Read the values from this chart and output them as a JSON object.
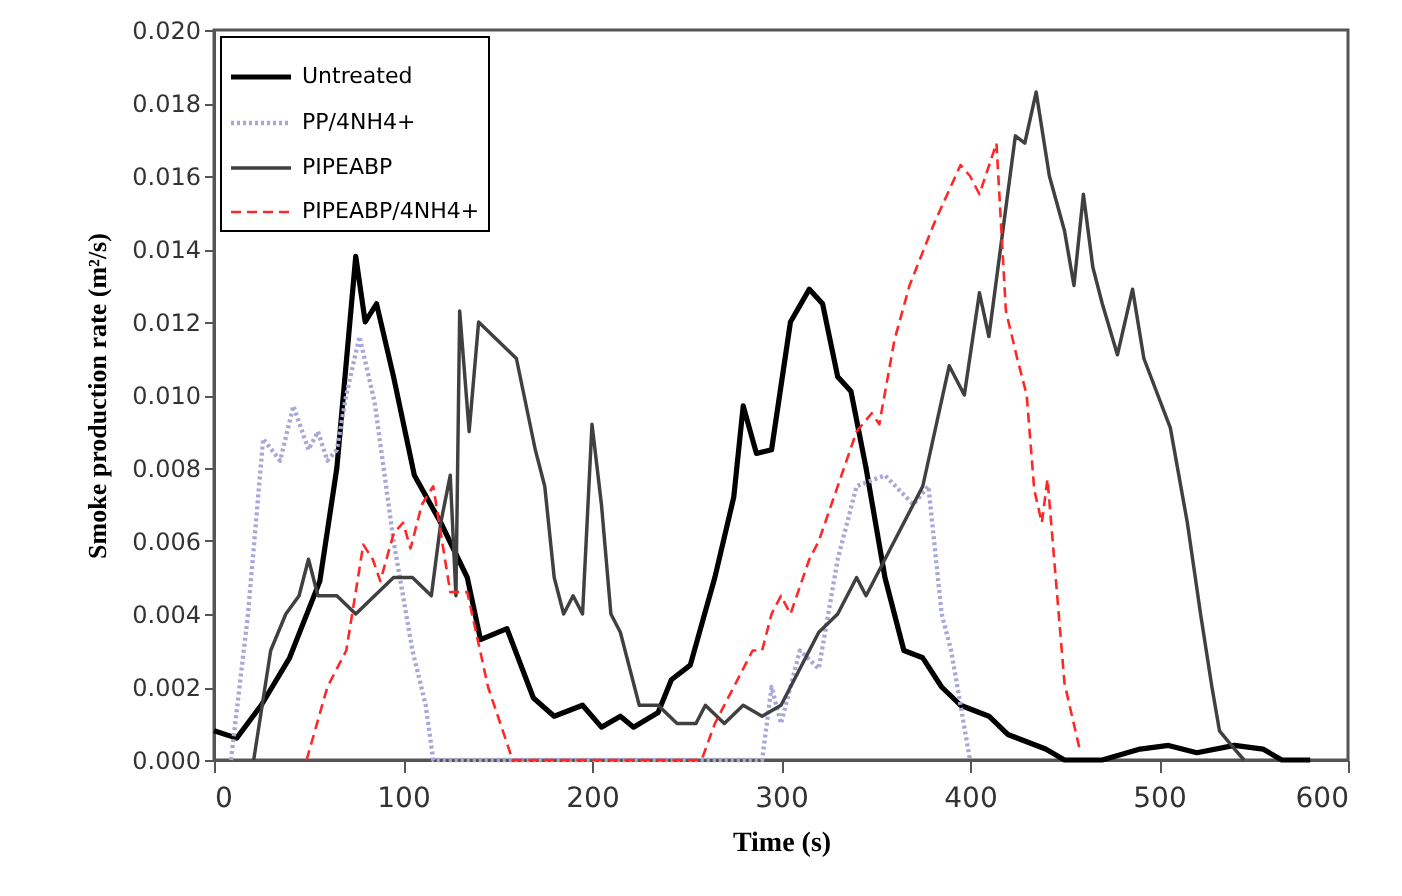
{
  "chart_data": {
    "type": "line",
    "xlabel": "Time (s)",
    "ylabel": "Smoke production  rate (m²/s)",
    "xlim": [
      0,
      600
    ],
    "xticks": [
      0,
      100,
      200,
      300,
      400,
      500,
      600
    ],
    "ylim": [
      0,
      0.02
    ],
    "yticks": [
      {
        "value": 0,
        "label": "0.000"
      },
      {
        "value": 0.002,
        "label": "0.002"
      },
      {
        "value": 0.004,
        "label": "0.004"
      },
      {
        "value": 0.006,
        "label": "0.006"
      },
      {
        "value": 0.008,
        "label": "0.008"
      },
      {
        "value": 0.01,
        "label": "0.010"
      },
      {
        "value": 0.012,
        "label": "0.012"
      },
      {
        "value": 0.014,
        "label": "0.014"
      },
      {
        "value": 0.016,
        "label": "0.016"
      },
      {
        "value": 0.018,
        "label": "0.018"
      },
      {
        "value": 0.02,
        "label": "0.020"
      }
    ],
    "grid": false,
    "legend": "top left",
    "marker": "none",
    "series": [
      {
        "name": "Untreated",
        "color": "#000000",
        "line_style": "solid",
        "x": [
          0,
          12,
          25,
          40,
          56,
          65,
          75,
          80,
          86,
          95,
          106,
          120,
          134,
          141,
          155,
          169,
          180,
          195,
          205,
          215,
          222,
          235,
          242,
          252,
          265,
          275,
          280,
          287,
          295,
          305,
          315,
          322,
          330,
          337,
          345,
          355,
          365,
          375,
          385,
          395,
          410,
          420,
          440,
          450,
          470,
          490,
          505,
          520,
          540,
          555,
          565,
          580
        ],
        "values": [
          0.0008,
          0.0006,
          0.0015,
          0.0028,
          0.0049,
          0.008,
          0.0138,
          0.012,
          0.0125,
          0.0105,
          0.0078,
          0.0065,
          0.005,
          0.0033,
          0.0036,
          0.0017,
          0.0012,
          0.0015,
          0.0009,
          0.0012,
          0.0009,
          0.0013,
          0.0022,
          0.0026,
          0.005,
          0.0072,
          0.0097,
          0.0084,
          0.0085,
          0.012,
          0.0129,
          0.0125,
          0.0105,
          0.0101,
          0.008,
          0.005,
          0.003,
          0.0028,
          0.002,
          0.0015,
          0.0012,
          0.0007,
          0.0003,
          0,
          0,
          0.0003,
          0.0004,
          0.0002,
          0.0004,
          0.0003,
          0,
          0
        ]
      },
      {
        "name": "PP/4NH4+",
        "color": "#a8a8d8",
        "line_style": "dotted",
        "x": [
          9,
          18,
          26,
          35,
          42,
          50,
          55,
          60,
          65,
          70,
          77,
          85,
          95,
          105,
          112,
          116,
          290,
          295,
          300,
          310,
          320,
          330,
          340,
          355,
          370,
          378,
          385,
          390,
          400
        ],
        "values": [
          0,
          0.004,
          0.0088,
          0.0082,
          0.0097,
          0.0085,
          0.009,
          0.0082,
          0.0085,
          0.01,
          0.0116,
          0.0098,
          0.006,
          0.003,
          0.0015,
          0,
          0,
          0.002,
          0.001,
          0.003,
          0.0025,
          0.0055,
          0.0075,
          0.0078,
          0.007,
          0.0075,
          0.004,
          0.003,
          0
        ]
      },
      {
        "name": "PIPEABP",
        "color": "#404040",
        "line_style": "solid",
        "x": [
          21,
          30,
          38,
          45,
          50,
          55,
          65,
          75,
          85,
          95,
          105,
          115,
          120,
          125,
          128,
          130,
          135,
          140,
          150,
          160,
          170,
          175,
          180,
          185,
          190,
          195,
          200,
          205,
          210,
          215,
          220,
          225,
          235,
          245,
          255,
          260,
          270,
          280,
          290,
          300,
          310,
          320,
          330,
          340,
          345,
          360,
          375,
          389,
          397,
          405,
          410,
          424,
          429,
          435,
          442,
          450,
          455,
          460,
          465,
          470,
          478,
          486,
          492,
          506,
          515,
          522,
          528,
          532,
          540,
          545
        ],
        "values": [
          0,
          0.003,
          0.004,
          0.0045,
          0.0055,
          0.0045,
          0.0045,
          0.004,
          0.0045,
          0.005,
          0.005,
          0.0045,
          0.0065,
          0.0078,
          0.0045,
          0.0123,
          0.009,
          0.012,
          0.0115,
          0.011,
          0.0085,
          0.0075,
          0.005,
          0.004,
          0.0045,
          0.004,
          0.0092,
          0.007,
          0.004,
          0.0035,
          0.0025,
          0.0015,
          0.0015,
          0.001,
          0.001,
          0.0015,
          0.001,
          0.0015,
          0.0012,
          0.0015,
          0.0025,
          0.0035,
          0.004,
          0.005,
          0.0045,
          0.006,
          0.0075,
          0.0108,
          0.01,
          0.0128,
          0.0116,
          0.0171,
          0.0169,
          0.0183,
          0.016,
          0.0145,
          0.013,
          0.0155,
          0.0135,
          0.0125,
          0.0111,
          0.0129,
          0.011,
          0.0091,
          0.0065,
          0.004,
          0.002,
          0.0008,
          0.0003,
          0
        ]
      },
      {
        "name": "PIPEABP/4NH4+",
        "color": "#ff2828",
        "line_style": "dashed",
        "x": [
          49,
          60,
          70,
          79,
          84,
          88,
          95,
          100,
          104,
          110,
          116,
          125,
          134,
          145,
          158,
          258,
          265,
          275,
          285,
          290,
          295,
          300,
          305,
          315,
          320,
          330,
          340,
          348,
          352,
          360,
          368,
          381,
          395,
          400,
          405,
          414,
          419,
          425,
          430,
          434,
          438,
          441,
          450,
          458
        ],
        "values": [
          0,
          0.002,
          0.003,
          0.0059,
          0.0055,
          0.0049,
          0.0062,
          0.0065,
          0.0058,
          0.007,
          0.0075,
          0.0046,
          0.0046,
          0.002,
          0,
          0,
          0.001,
          0.002,
          0.003,
          0.003,
          0.004,
          0.0045,
          0.004,
          0.0055,
          0.006,
          0.0075,
          0.009,
          0.0095,
          0.0092,
          0.0115,
          0.013,
          0.0147,
          0.0163,
          0.016,
          0.0155,
          0.0169,
          0.0123,
          0.011,
          0.01,
          0.0074,
          0.0065,
          0.0077,
          0.0021,
          0.0003
        ]
      }
    ]
  }
}
